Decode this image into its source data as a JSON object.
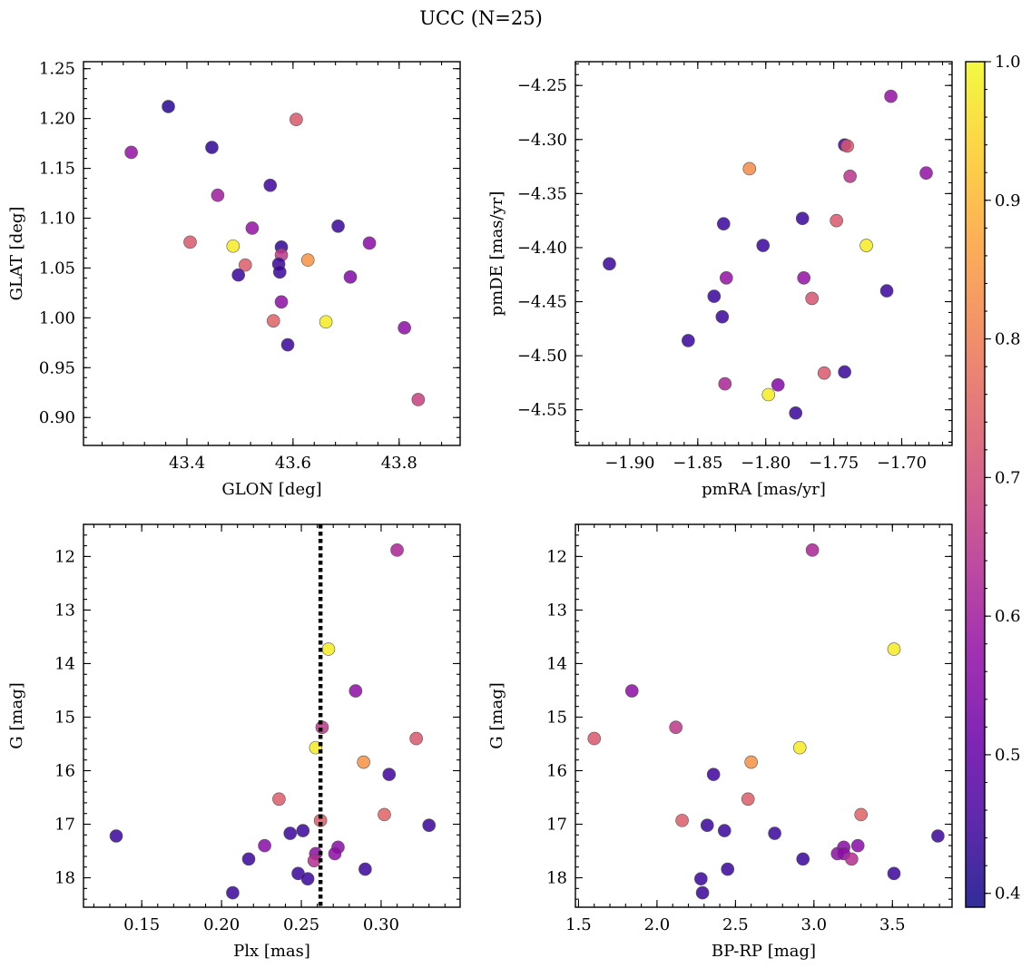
{
  "figure": {
    "suptitle": "UCC (N=25)"
  },
  "colorbar": {
    "colormap": "plasma",
    "vmin": 0.39,
    "vmax": 1.0,
    "ticks": [
      0.4,
      0.5,
      0.6,
      0.7,
      0.8,
      0.9,
      1.0
    ],
    "tick_labels": [
      "0.4",
      "0.5",
      "0.6",
      "0.7",
      "0.8",
      "0.9",
      "1.0"
    ]
  },
  "chart_data": [
    {
      "type": "scatter",
      "xlabel": "GLON [deg]",
      "ylabel": "GLAT [deg]",
      "xlim": [
        43.205,
        43.915
      ],
      "ylim": [
        0.872,
        1.257
      ],
      "xticks": [
        43.4,
        43.6,
        43.8
      ],
      "xtick_labels": [
        "43.4",
        "43.6",
        "43.8"
      ],
      "yticks": [
        0.9,
        0.95,
        1.0,
        1.05,
        1.1,
        1.15,
        1.2,
        1.25
      ],
      "ytick_labels": [
        "0.90",
        "0.95",
        "1.00",
        "1.05",
        "1.10",
        "1.15",
        "1.20",
        "1.25"
      ],
      "invert_y": false,
      "points": [
        {
          "x": 43.365,
          "y": 1.212,
          "c": 0.42
        },
        {
          "x": 43.295,
          "y": 1.166,
          "c": 0.58
        },
        {
          "x": 43.447,
          "y": 1.171,
          "c": 0.43
        },
        {
          "x": 43.606,
          "y": 1.199,
          "c": 0.73
        },
        {
          "x": 43.458,
          "y": 1.123,
          "c": 0.6
        },
        {
          "x": 43.557,
          "y": 1.133,
          "c": 0.45
        },
        {
          "x": 43.685,
          "y": 1.092,
          "c": 0.44
        },
        {
          "x": 43.523,
          "y": 1.09,
          "c": 0.58
        },
        {
          "x": 43.406,
          "y": 1.076,
          "c": 0.73
        },
        {
          "x": 43.487,
          "y": 1.072,
          "c": 0.98
        },
        {
          "x": 43.578,
          "y": 1.071,
          "c": 0.43
        },
        {
          "x": 43.744,
          "y": 1.075,
          "c": 0.56
        },
        {
          "x": 43.578,
          "y": 1.063,
          "c": 0.66
        },
        {
          "x": 43.628,
          "y": 1.058,
          "c": 0.84
        },
        {
          "x": 43.51,
          "y": 1.053,
          "c": 0.74
        },
        {
          "x": 43.573,
          "y": 1.054,
          "c": 0.44
        },
        {
          "x": 43.575,
          "y": 1.046,
          "c": 0.44
        },
        {
          "x": 43.497,
          "y": 1.043,
          "c": 0.44
        },
        {
          "x": 43.708,
          "y": 1.041,
          "c": 0.55
        },
        {
          "x": 43.578,
          "y": 1.016,
          "c": 0.57
        },
        {
          "x": 43.563,
          "y": 0.997,
          "c": 0.75
        },
        {
          "x": 43.662,
          "y": 0.996,
          "c": 0.98
        },
        {
          "x": 43.81,
          "y": 0.99,
          "c": 0.57
        },
        {
          "x": 43.59,
          "y": 0.973,
          "c": 0.44
        },
        {
          "x": 43.836,
          "y": 0.918,
          "c": 0.68
        }
      ]
    },
    {
      "type": "scatter",
      "xlabel": "pmRA [mas/yr]",
      "ylabel": "pmDE [mas/yr]",
      "xlim": [
        -1.94,
        -1.663
      ],
      "ylim": [
        -4.583,
        -4.228
      ],
      "xticks": [
        -1.9,
        -1.85,
        -1.8,
        -1.75,
        -1.7
      ],
      "xtick_labels": [
        "−1.90",
        "−1.85",
        "−1.80",
        "−1.75",
        "−1.70"
      ],
      "yticks": [
        -4.55,
        -4.5,
        -4.45,
        -4.4,
        -4.35,
        -4.3,
        -4.25
      ],
      "ytick_labels": [
        "−4.55",
        "−4.50",
        "−4.45",
        "−4.40",
        "−4.35",
        "−4.30",
        "−4.25"
      ],
      "invert_y": false,
      "points": [
        {
          "x": -1.708,
          "y": -4.26,
          "c": 0.58
        },
        {
          "x": -1.742,
          "y": -4.305,
          "c": 0.45
        },
        {
          "x": -1.74,
          "y": -4.306,
          "c": 0.73
        },
        {
          "x": -1.682,
          "y": -4.331,
          "c": 0.58
        },
        {
          "x": -1.738,
          "y": -4.334,
          "c": 0.65
        },
        {
          "x": -1.812,
          "y": -4.327,
          "c": 0.83
        },
        {
          "x": -1.773,
          "y": -4.373,
          "c": 0.44
        },
        {
          "x": -1.831,
          "y": -4.378,
          "c": 0.44
        },
        {
          "x": -1.748,
          "y": -4.375,
          "c": 0.73
        },
        {
          "x": -1.802,
          "y": -4.398,
          "c": 0.44
        },
        {
          "x": -1.726,
          "y": -4.398,
          "c": 0.98
        },
        {
          "x": -1.915,
          "y": -4.415,
          "c": 0.44
        },
        {
          "x": -1.829,
          "y": -4.428,
          "c": 0.58
        },
        {
          "x": -1.772,
          "y": -4.428,
          "c": 0.58
        },
        {
          "x": -1.711,
          "y": -4.44,
          "c": 0.44
        },
        {
          "x": -1.838,
          "y": -4.445,
          "c": 0.44
        },
        {
          "x": -1.766,
          "y": -4.447,
          "c": 0.72
        },
        {
          "x": -1.832,
          "y": -4.464,
          "c": 0.44
        },
        {
          "x": -1.857,
          "y": -4.486,
          "c": 0.44
        },
        {
          "x": -1.757,
          "y": -4.516,
          "c": 0.73
        },
        {
          "x": -1.742,
          "y": -4.515,
          "c": 0.44
        },
        {
          "x": -1.83,
          "y": -4.526,
          "c": 0.62
        },
        {
          "x": -1.791,
          "y": -4.527,
          "c": 0.55
        },
        {
          "x": -1.798,
          "y": -4.536,
          "c": 0.98
        },
        {
          "x": -1.778,
          "y": -4.553,
          "c": 0.44
        }
      ]
    },
    {
      "type": "scatter",
      "xlabel": "Plx [mas]",
      "ylabel": "G [mag]",
      "xlim": [
        0.1135,
        0.3495
      ],
      "ylim": [
        18.55,
        11.4
      ],
      "xticks": [
        0.15,
        0.2,
        0.25,
        0.3
      ],
      "xtick_labels": [
        "0.15",
        "0.20",
        "0.25",
        "0.30"
      ],
      "yticks": [
        12,
        13,
        14,
        15,
        16,
        17,
        18
      ],
      "ytick_labels": [
        "12",
        "13",
        "14",
        "15",
        "16",
        "17",
        "18"
      ],
      "invert_y": true,
      "vline": {
        "x": 0.262,
        "style": "dotted"
      },
      "points": [
        {
          "x": 0.31,
          "y": 11.88,
          "c": 0.62
        },
        {
          "x": 0.267,
          "y": 13.73,
          "c": 0.98
        },
        {
          "x": 0.284,
          "y": 14.51,
          "c": 0.57
        },
        {
          "x": 0.263,
          "y": 15.19,
          "c": 0.66
        },
        {
          "x": 0.322,
          "y": 15.4,
          "c": 0.73
        },
        {
          "x": 0.259,
          "y": 15.57,
          "c": 0.98
        },
        {
          "x": 0.289,
          "y": 15.84,
          "c": 0.84
        },
        {
          "x": 0.305,
          "y": 16.07,
          "c": 0.45
        },
        {
          "x": 0.236,
          "y": 16.53,
          "c": 0.74
        },
        {
          "x": 0.302,
          "y": 16.82,
          "c": 0.75
        },
        {
          "x": 0.262,
          "y": 16.93,
          "c": 0.74
        },
        {
          "x": 0.33,
          "y": 17.02,
          "c": 0.44
        },
        {
          "x": 0.251,
          "y": 17.12,
          "c": 0.44
        },
        {
          "x": 0.243,
          "y": 17.17,
          "c": 0.44
        },
        {
          "x": 0.134,
          "y": 17.22,
          "c": 0.44
        },
        {
          "x": 0.227,
          "y": 17.4,
          "c": 0.56
        },
        {
          "x": 0.273,
          "y": 17.43,
          "c": 0.56
        },
        {
          "x": 0.271,
          "y": 17.55,
          "c": 0.57
        },
        {
          "x": 0.259,
          "y": 17.55,
          "c": 0.57
        },
        {
          "x": 0.217,
          "y": 17.65,
          "c": 0.44
        },
        {
          "x": 0.258,
          "y": 17.68,
          "c": 0.64
        },
        {
          "x": 0.29,
          "y": 17.84,
          "c": 0.44
        },
        {
          "x": 0.248,
          "y": 17.92,
          "c": 0.44
        },
        {
          "x": 0.254,
          "y": 18.02,
          "c": 0.44
        },
        {
          "x": 0.207,
          "y": 18.28,
          "c": 0.44
        }
      ]
    },
    {
      "type": "scatter",
      "xlabel": "BP-RP [mag]",
      "ylabel": "G [mag]",
      "xlim": [
        1.48,
        3.88
      ],
      "ylim": [
        18.55,
        11.4
      ],
      "xticks": [
        1.5,
        2.0,
        2.5,
        3.0,
        3.5
      ],
      "xtick_labels": [
        "1.5",
        "2.0",
        "2.5",
        "3.0",
        "3.5"
      ],
      "yticks": [
        12,
        13,
        14,
        15,
        16,
        17,
        18
      ],
      "ytick_labels": [
        "12",
        "13",
        "14",
        "15",
        "16",
        "17",
        "18"
      ],
      "invert_y": true,
      "points": [
        {
          "x": 2.99,
          "y": 11.88,
          "c": 0.62
        },
        {
          "x": 3.51,
          "y": 13.73,
          "c": 0.98
        },
        {
          "x": 1.84,
          "y": 14.51,
          "c": 0.57
        },
        {
          "x": 2.12,
          "y": 15.19,
          "c": 0.66
        },
        {
          "x": 1.6,
          "y": 15.4,
          "c": 0.73
        },
        {
          "x": 2.91,
          "y": 15.57,
          "c": 0.98
        },
        {
          "x": 2.6,
          "y": 15.84,
          "c": 0.84
        },
        {
          "x": 2.36,
          "y": 16.07,
          "c": 0.45
        },
        {
          "x": 2.58,
          "y": 16.53,
          "c": 0.74
        },
        {
          "x": 3.3,
          "y": 16.82,
          "c": 0.75
        },
        {
          "x": 2.16,
          "y": 16.93,
          "c": 0.74
        },
        {
          "x": 2.32,
          "y": 17.02,
          "c": 0.44
        },
        {
          "x": 2.43,
          "y": 17.12,
          "c": 0.44
        },
        {
          "x": 2.75,
          "y": 17.17,
          "c": 0.44
        },
        {
          "x": 3.79,
          "y": 17.22,
          "c": 0.44
        },
        {
          "x": 3.28,
          "y": 17.4,
          "c": 0.56
        },
        {
          "x": 3.19,
          "y": 17.43,
          "c": 0.56
        },
        {
          "x": 3.15,
          "y": 17.55,
          "c": 0.57
        },
        {
          "x": 3.19,
          "y": 17.55,
          "c": 0.57
        },
        {
          "x": 3.24,
          "y": 17.65,
          "c": 0.64
        },
        {
          "x": 2.93,
          "y": 17.65,
          "c": 0.44
        },
        {
          "x": 2.45,
          "y": 17.84,
          "c": 0.44
        },
        {
          "x": 3.51,
          "y": 17.92,
          "c": 0.44
        },
        {
          "x": 2.28,
          "y": 18.02,
          "c": 0.44
        },
        {
          "x": 2.29,
          "y": 18.28,
          "c": 0.44
        }
      ]
    }
  ]
}
